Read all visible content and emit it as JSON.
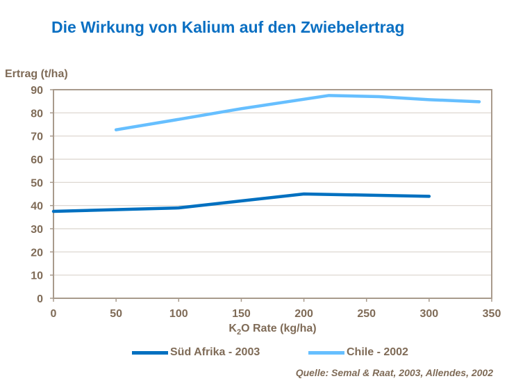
{
  "chart_data": {
    "type": "line",
    "title": "Die Wirkung von Kalium auf den Zwiebelertrag",
    "ylabel": "Ertrag (t/ha)",
    "xlabel_parts": [
      "K",
      "2",
      "O Rate (kg/ha)"
    ],
    "xlim": [
      0,
      350
    ],
    "ylim": [
      0,
      90
    ],
    "xticks": [
      0,
      50,
      100,
      150,
      200,
      250,
      300,
      350
    ],
    "yticks": [
      0,
      10,
      20,
      30,
      40,
      50,
      60,
      70,
      80,
      90
    ],
    "grid": true,
    "legend_position": "bottom",
    "series": [
      {
        "name": "Süd Afrika - 2003",
        "color": "#0070c0",
        "x": [
          0,
          100,
          200,
          300
        ],
        "y": [
          37.5,
          39,
          45,
          44
        ]
      },
      {
        "name": "Chile - 2002",
        "color": "#66bfff",
        "x": [
          50,
          100,
          150,
          220,
          260,
          300,
          340
        ],
        "y": [
          72.7,
          77.2,
          81.8,
          87.5,
          87,
          85.7,
          84.8
        ]
      }
    ],
    "source": "Quelle: Semal & Raat, 2003, Allendes, 2002"
  }
}
